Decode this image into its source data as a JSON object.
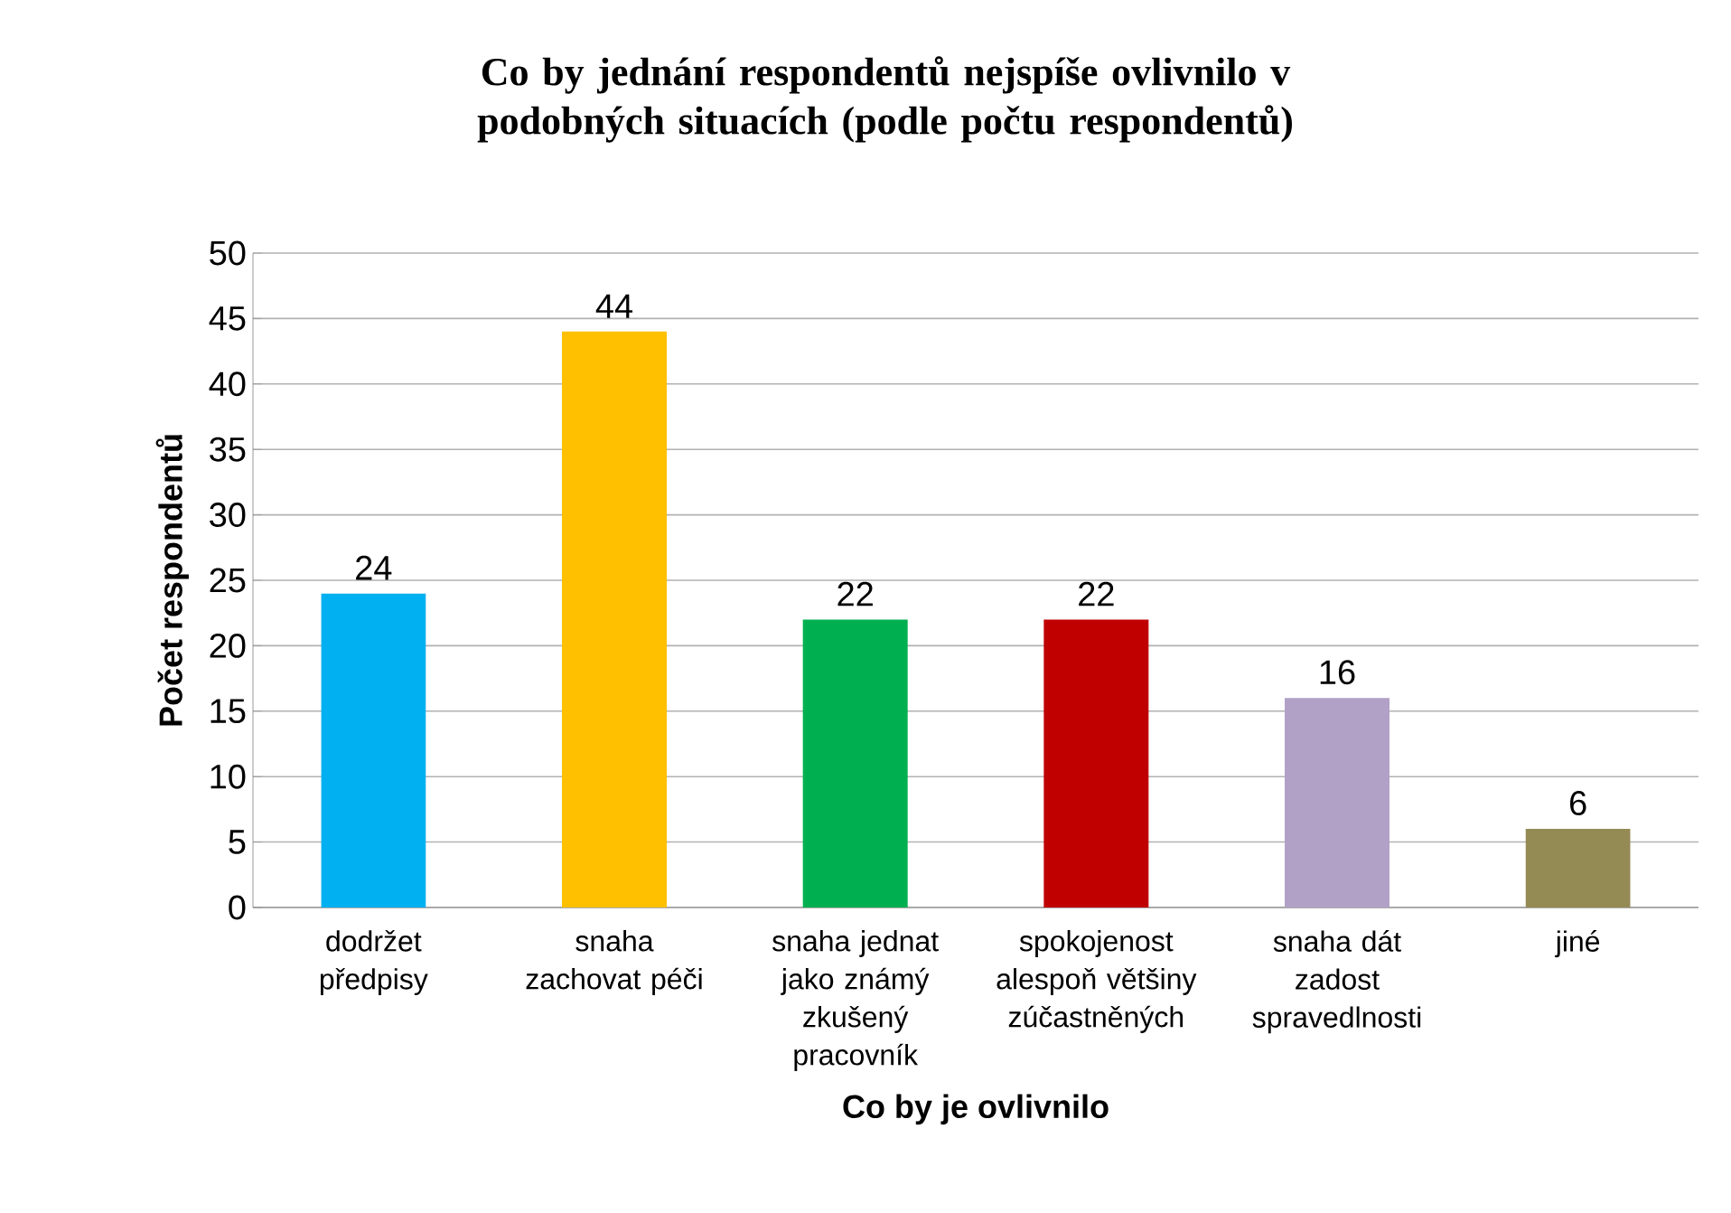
{
  "chart_data": {
    "type": "bar",
    "title": "Co by jednání respondentů nejspíše ovlivnilo v podobných situacích (podle počtu respondentů)",
    "xlabel": "Co by je ovlivnilo",
    "ylabel": "Počet respondentů",
    "categories": [
      "dodržet předpisy",
      "snaha zachovat péči",
      "snaha jednat jako známý zkušený pracovník",
      "spokojenost alespoň většiny zúčastněných",
      "snaha dát zadost spravedlnosti",
      "jiné"
    ],
    "values": [
      24,
      44,
      22,
      22,
      16,
      6
    ],
    "colors": [
      "#00b0f0",
      "#ffc000",
      "#00b050",
      "#c00000",
      "#b2a1c7",
      "#948a54"
    ],
    "ylim": [
      0,
      50
    ],
    "yticks": [
      0,
      5,
      10,
      15,
      20,
      25,
      30,
      35,
      40,
      45,
      50
    ],
    "grid": "y",
    "data_labels": true
  }
}
